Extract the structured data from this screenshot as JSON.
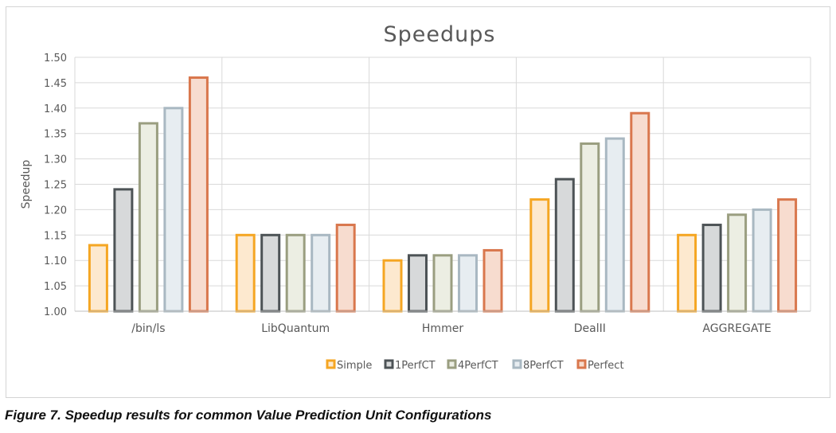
{
  "chart_data": {
    "type": "bar",
    "title": "Speedups",
    "ylabel": "Speedup",
    "xlabel": "",
    "ylim": [
      1.0,
      1.5
    ],
    "yticks": [
      "1.00",
      "1.05",
      "1.10",
      "1.15",
      "1.20",
      "1.25",
      "1.30",
      "1.35",
      "1.40",
      "1.45",
      "1.50"
    ],
    "grid": true,
    "legend_position": "bottom",
    "categories": [
      "/bin/ls",
      "LibQuantum",
      "Hmmer",
      "DealII",
      "AGGREGATE"
    ],
    "series": [
      {
        "name": "Simple",
        "values": [
          1.13,
          1.15,
          1.1,
          1.22,
          1.15
        ],
        "color": "#f5a623",
        "fill": "#fde9cf"
      },
      {
        "name": "1PerfCT",
        "values": [
          1.24,
          1.15,
          1.11,
          1.26,
          1.17
        ],
        "color": "#4d5356",
        "fill": "#d7d9da"
      },
      {
        "name": "4PerfCT",
        "values": [
          1.37,
          1.15,
          1.11,
          1.33,
          1.19
        ],
        "color": "#9a9e80",
        "fill": "#eceee3"
      },
      {
        "name": "8PerfCT",
        "values": [
          1.4,
          1.15,
          1.11,
          1.34,
          1.2
        ],
        "color": "#a9b8c2",
        "fill": "#e7edf1"
      },
      {
        "name": "Perfect",
        "values": [
          1.46,
          1.17,
          1.12,
          1.39,
          1.22
        ],
        "color": "#d9774d",
        "fill": "#f7dccf"
      }
    ]
  },
  "caption": "Figure 7. Speedup results for common Value Prediction Unit Configurations"
}
